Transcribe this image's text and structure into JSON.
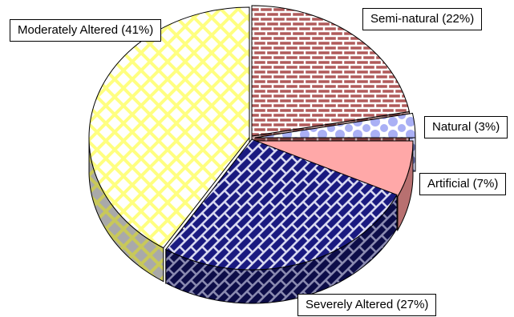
{
  "chart_data": {
    "type": "pie",
    "style": "3d-exploded",
    "title": "",
    "slices": [
      {
        "label": "Semi-natural (22%)",
        "value": 22,
        "color": "#b05a5a",
        "pattern": "brick"
      },
      {
        "label": "Natural (3%)",
        "value": 3,
        "color": "#aab0f5",
        "pattern": "dots"
      },
      {
        "label": "Artificial (7%)",
        "value": 7,
        "color": "#ffa8a8",
        "pattern": "solid"
      },
      {
        "label": "Severely Altered (27%)",
        "value": 27,
        "color": "#1a1a80",
        "pattern": "weave"
      },
      {
        "label": "Moderately Altered (41%)",
        "value": 41,
        "color": "#ffff80",
        "pattern": "lattice"
      }
    ]
  }
}
